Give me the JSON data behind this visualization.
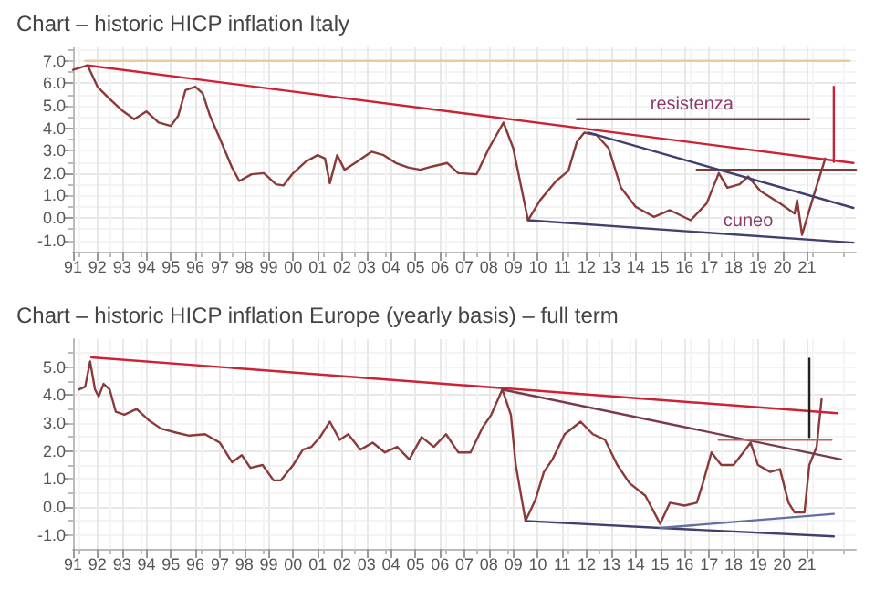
{
  "chart_data": [
    {
      "type": "line",
      "title": "Chart – historic HICP inflation Italy",
      "xlim": [
        1991,
        2023
      ],
      "ylim": [
        -1.5,
        7.6
      ],
      "grid": true,
      "marker": "none",
      "line_style": "solid",
      "xticks": [
        {
          "value": 1991,
          "label": "91"
        },
        {
          "value": 1992,
          "label": "92"
        },
        {
          "value": 1993,
          "label": "93"
        },
        {
          "value": 1994,
          "label": "94"
        },
        {
          "value": 1995,
          "label": "95"
        },
        {
          "value": 1996,
          "label": "96"
        },
        {
          "value": 1997,
          "label": "97"
        },
        {
          "value": 1998,
          "label": "98"
        },
        {
          "value": 1999,
          "label": "99"
        },
        {
          "value": 2000,
          "label": "00"
        },
        {
          "value": 2001,
          "label": "01"
        },
        {
          "value": 2002,
          "label": "02"
        },
        {
          "value": 2003,
          "label": "03"
        },
        {
          "value": 2004,
          "label": "04"
        },
        {
          "value": 2005,
          "label": "05"
        },
        {
          "value": 2006,
          "label": "06"
        },
        {
          "value": 2007,
          "label": "07"
        },
        {
          "value": 2008,
          "label": "08"
        },
        {
          "value": 2009,
          "label": "09"
        },
        {
          "value": 2010,
          "label": "10"
        },
        {
          "value": 2011,
          "label": "11"
        },
        {
          "value": 2012,
          "label": "12"
        },
        {
          "value": 2013,
          "label": "13"
        },
        {
          "value": 2014,
          "label": "14"
        },
        {
          "value": 2015,
          "label": "15"
        },
        {
          "value": 2016,
          "label": "16"
        },
        {
          "value": 2017,
          "label": "17"
        },
        {
          "value": 2018,
          "label": "18"
        },
        {
          "value": 2019,
          "label": "19"
        },
        {
          "value": 2020,
          "label": "20"
        },
        {
          "value": 2021,
          "label": "21"
        }
      ],
      "yticks": [
        {
          "value": -1,
          "label": "-1.0"
        },
        {
          "value": 0,
          "label": "0.0"
        },
        {
          "value": 1,
          "label": "1.0"
        },
        {
          "value": 2,
          "label": "2.0"
        },
        {
          "value": 3,
          "label": "3.0"
        },
        {
          "value": 4,
          "label": "4.0"
        },
        {
          "value": 5,
          "label": "5.0"
        },
        {
          "value": 6,
          "label": "6.0"
        },
        {
          "value": 7,
          "label": "7.0"
        }
      ],
      "annotations": [
        {
          "text": "resistenza",
          "x": 2016.3,
          "y": 4.4
        },
        {
          "text": "cuneo",
          "x": 2018.6,
          "y": -0.8
        }
      ],
      "series": [
        {
          "color": "#8b3a3a",
          "x": [
            1991.0,
            1991.6,
            1992.0,
            1992.5,
            1993.0,
            1993.5,
            1994.0,
            1994.5,
            1995.0,
            1995.3,
            1995.6,
            1996.0,
            1996.3,
            1996.6,
            1997.0,
            1997.5,
            1997.8,
            1998.3,
            1998.8,
            1999.3,
            1999.6,
            2000.0,
            2000.5,
            2001.0,
            2001.3,
            2001.5,
            2001.8,
            2002.1,
            2002.6,
            2003.2,
            2003.7,
            2004.2,
            2004.7,
            2005.2,
            2005.7,
            2006.3,
            2006.75,
            2007.5,
            2008.0,
            2008.6,
            2009.0,
            2009.6,
            2010.1,
            2010.75,
            2011.25,
            2011.6,
            2011.9,
            2012.4,
            2012.9,
            2013.4,
            2014.0,
            2014.75,
            2015.4,
            2016.25,
            2016.9,
            2017.4,
            2017.75,
            2018.25,
            2018.6,
            2019.1,
            2019.9,
            2020.5,
            2020.6,
            2020.8,
            2021.25,
            2021.75
          ],
          "values": [
            6.6,
            6.8,
            5.85,
            5.3,
            4.8,
            4.4,
            4.75,
            4.25,
            4.1,
            4.55,
            5.7,
            5.85,
            5.55,
            4.55,
            3.55,
            2.25,
            1.65,
            1.95,
            2.0,
            1.5,
            1.45,
            2.0,
            2.5,
            2.8,
            2.65,
            1.55,
            2.8,
            2.15,
            2.5,
            2.95,
            2.8,
            2.45,
            2.25,
            2.15,
            2.3,
            2.45,
            2.0,
            1.95,
            3.1,
            4.25,
            3.1,
            -0.1,
            0.8,
            1.65,
            2.1,
            3.4,
            3.8,
            3.7,
            3.1,
            1.35,
            0.5,
            0.05,
            0.35,
            -0.1,
            0.65,
            2.0,
            1.35,
            1.5,
            1.85,
            1.2,
            0.65,
            0.2,
            0.8,
            -0.75,
            0.9,
            2.65
          ]
        },
        {
          "color": "#f0c8a0",
          "x": [
            1991.5,
            2022.75
          ],
          "values": [
            7.0,
            7.0
          ]
        },
        {
          "color": "#cc2233",
          "x": [
            1991.6,
            2022.9
          ],
          "values": [
            6.8,
            2.45
          ]
        },
        {
          "color": "#7a3a3a",
          "x": [
            2011.6,
            2021.1
          ],
          "values": [
            4.4,
            4.4
          ]
        },
        {
          "color": "#7a3a3a",
          "x": [
            2016.5,
            2023.0
          ],
          "values": [
            2.15,
            2.15
          ]
        },
        {
          "color": "#404070",
          "x": [
            2012.1,
            2022.9
          ],
          "values": [
            3.8,
            0.45
          ]
        },
        {
          "color": "#404070",
          "x": [
            2009.6,
            2022.9
          ],
          "values": [
            -0.1,
            -1.1
          ]
        },
        {
          "color": "#cc2233",
          "x": [
            2022.1,
            2022.1
          ],
          "values": [
            5.85,
            2.5
          ]
        }
      ]
    },
    {
      "type": "line",
      "title": "Chart – historic HICP inflation Europe (yearly basis) – full term",
      "xlim": [
        1991,
        2023
      ],
      "ylim": [
        -1.5,
        6
      ],
      "grid": true,
      "marker": "none",
      "line_style": "solid",
      "xticks": [
        {
          "value": 1991,
          "label": "91"
        },
        {
          "value": 1992,
          "label": "92"
        },
        {
          "value": 1993,
          "label": "93"
        },
        {
          "value": 1994,
          "label": "94"
        },
        {
          "value": 1995,
          "label": "95"
        },
        {
          "value": 1996,
          "label": "96"
        },
        {
          "value": 1997,
          "label": "97"
        },
        {
          "value": 1998,
          "label": "98"
        },
        {
          "value": 1999,
          "label": "99"
        },
        {
          "value": 2000,
          "label": "00"
        },
        {
          "value": 2001,
          "label": "01"
        },
        {
          "value": 2002,
          "label": "02"
        },
        {
          "value": 2003,
          "label": "03"
        },
        {
          "value": 2004,
          "label": "04"
        },
        {
          "value": 2005,
          "label": "05"
        },
        {
          "value": 2006,
          "label": "06"
        },
        {
          "value": 2007,
          "label": "07"
        },
        {
          "value": 2008,
          "label": "08"
        },
        {
          "value": 2009,
          "label": "09"
        },
        {
          "value": 2010,
          "label": "10"
        },
        {
          "value": 2011,
          "label": "11"
        },
        {
          "value": 2012,
          "label": "12"
        },
        {
          "value": 2013,
          "label": "13"
        },
        {
          "value": 2014,
          "label": "14"
        },
        {
          "value": 2015,
          "label": "15"
        },
        {
          "value": 2016,
          "label": "16"
        },
        {
          "value": 2017,
          "label": "17"
        },
        {
          "value": 2018,
          "label": "18"
        },
        {
          "value": 2019,
          "label": "19"
        },
        {
          "value": 2020,
          "label": "20"
        },
        {
          "value": 2021,
          "label": "21"
        }
      ],
      "yticks": [
        {
          "value": -1,
          "label": "-1.0"
        },
        {
          "value": 0,
          "label": "0.0"
        },
        {
          "value": 1,
          "label": "1.0"
        },
        {
          "value": 2,
          "label": "2.0"
        },
        {
          "value": 3,
          "label": "3.0"
        },
        {
          "value": 4,
          "label": "4.0"
        },
        {
          "value": 5,
          "label": "5.0"
        }
      ],
      "series": [
        {
          "color": "#8b3a3a",
          "x": [
            1991.25,
            1991.5,
            1991.7,
            1991.9,
            1992.05,
            1992.25,
            1992.5,
            1992.75,
            1993.1,
            1993.6,
            1994.1,
            1994.6,
            1995.25,
            1995.75,
            1996.4,
            1997.0,
            1997.5,
            1997.9,
            1998.25,
            1998.75,
            1999.2,
            1999.5,
            2000.0,
            2000.4,
            2000.75,
            2001.1,
            2001.5,
            2001.9,
            2002.25,
            2002.75,
            2003.25,
            2003.75,
            2004.25,
            2004.75,
            2005.25,
            2005.75,
            2006.25,
            2006.75,
            2007.25,
            2007.75,
            2008.1,
            2008.55,
            2008.9,
            2009.1,
            2009.5,
            2009.9,
            2010.25,
            2010.6,
            2011.1,
            2011.75,
            2012.25,
            2012.75,
            2013.25,
            2013.75,
            2014.4,
            2015.0,
            2015.4,
            2016.0,
            2016.5,
            2016.75,
            2017.1,
            2017.5,
            2018.0,
            2018.4,
            2018.7,
            2019.0,
            2019.5,
            2019.9,
            2020.25,
            2020.5,
            2020.9,
            2021.1,
            2021.4,
            2021.6
          ],
          "values": [
            4.2,
            4.3,
            5.2,
            4.2,
            3.95,
            4.4,
            4.2,
            3.4,
            3.3,
            3.5,
            3.1,
            2.8,
            2.65,
            2.55,
            2.6,
            2.3,
            1.6,
            1.85,
            1.4,
            1.5,
            0.95,
            0.95,
            1.5,
            2.05,
            2.15,
            2.5,
            3.05,
            2.4,
            2.6,
            2.05,
            2.3,
            1.95,
            2.15,
            1.7,
            2.5,
            2.15,
            2.6,
            1.95,
            1.95,
            2.85,
            3.3,
            4.2,
            3.3,
            1.5,
            -0.5,
            0.25,
            1.25,
            1.7,
            2.6,
            3.05,
            2.6,
            2.4,
            1.5,
            0.85,
            0.4,
            -0.6,
            0.15,
            0.05,
            0.15,
            0.85,
            1.95,
            1.5,
            1.5,
            1.95,
            2.3,
            1.5,
            1.25,
            1.35,
            0.15,
            -0.2,
            -0.2,
            1.5,
            2.15,
            3.85
          ]
        },
        {
          "color": "#cc2233",
          "x": [
            1991.75,
            2022.25
          ],
          "values": [
            5.35,
            3.35
          ]
        },
        {
          "color": "#7a3a4a",
          "x": [
            2008.55,
            2022.4
          ],
          "values": [
            4.2,
            1.7
          ]
        },
        {
          "color": "#c06060",
          "x": [
            2017.4,
            2022.0
          ],
          "values": [
            2.4,
            2.4
          ]
        },
        {
          "color": "#404070",
          "x": [
            2009.5,
            2015.0,
            2022.1
          ],
          "values": [
            -0.5,
            -0.75,
            -1.05
          ]
        },
        {
          "color": "#6070a0",
          "x": [
            2015.0,
            2022.1
          ],
          "values": [
            -0.75,
            -0.25
          ]
        },
        {
          "color": "#222222",
          "x": [
            2021.1,
            2021.1
          ],
          "values": [
            5.3,
            2.5
          ]
        }
      ]
    }
  ]
}
